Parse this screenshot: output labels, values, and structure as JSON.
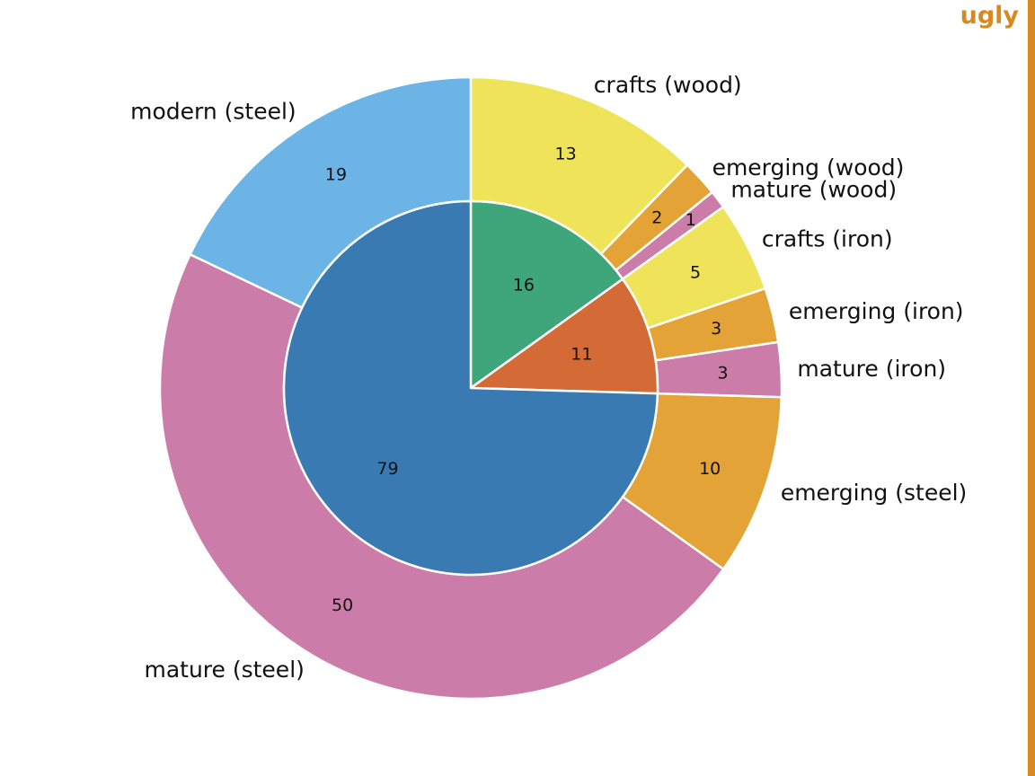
{
  "badge": {
    "text": "ugly",
    "color": "#d8891f"
  },
  "chart_data": {
    "type": "pie",
    "subtype": "nested-donut",
    "inner": [
      {
        "name": "",
        "value": 16,
        "color": "#3fa67b"
      },
      {
        "name": "",
        "value": 11,
        "color": "#d46a35"
      },
      {
        "name": "",
        "value": 79,
        "color": "#3a7ab2"
      }
    ],
    "outer": [
      {
        "label": "crafts (wood)",
        "value": 13,
        "color": "#efe459"
      },
      {
        "label": "emerging (wood)",
        "value": 2,
        "color": "#e3a336"
      },
      {
        "label": "mature (wood)",
        "value": 1,
        "color": "#cb7ca8"
      },
      {
        "label": "crafts (iron)",
        "value": 5,
        "color": "#efe459"
      },
      {
        "label": "emerging (iron)",
        "value": 3,
        "color": "#e3a336"
      },
      {
        "label": "mature (iron)",
        "value": 3,
        "color": "#cb7ca8"
      },
      {
        "label": "emerging (steel)",
        "value": 10,
        "color": "#e3a336"
      },
      {
        "label": "mature (steel)",
        "value": 50,
        "color": "#cb7ca8"
      },
      {
        "label": "modern (steel)",
        "value": 19,
        "color": "#6bb4e5"
      }
    ],
    "start_angle": "12 o'clock",
    "direction": "clockwise",
    "legend": "none"
  }
}
